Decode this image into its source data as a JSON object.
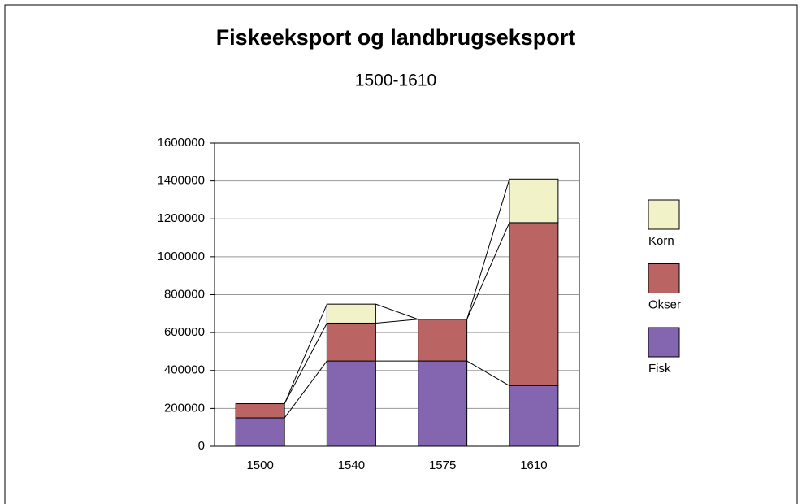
{
  "chart_data": {
    "type": "stacked_bar",
    "title": "Fiskeeksport og landbrugseksport",
    "subtitle": "1500-1610",
    "categories": [
      "1500",
      "1540",
      "1575",
      "1610"
    ],
    "series": [
      {
        "name": "Fisk",
        "color": "#8466b0",
        "values": [
          150000,
          450000,
          450000,
          320000
        ]
      },
      {
        "name": "Okser",
        "color": "#bb6464",
        "values": [
          75000,
          200000,
          220000,
          860000
        ]
      },
      {
        "name": "Korn",
        "color": "#f2f2c8",
        "values": [
          0,
          100000,
          0,
          230000
        ]
      }
    ],
    "ylim": [
      0,
      1600000
    ],
    "yticks": [
      0,
      200000,
      400000,
      600000,
      800000,
      1000000,
      1200000,
      1400000,
      1600000
    ],
    "grid": true
  }
}
